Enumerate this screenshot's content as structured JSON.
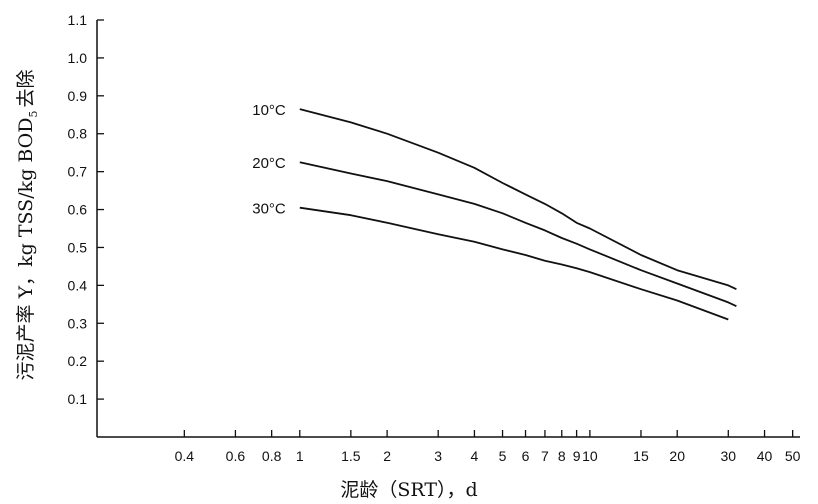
{
  "chart_data": {
    "type": "line",
    "title": "",
    "xlabel": "泥龄（SRT），d",
    "ylabel": "污泥产率 Y，kg TSS/kg BOD",
    "ylabel_subscript": "5",
    "ylabel_suffix": "去除",
    "x_scale": "log",
    "xlim": [
      0.2,
      53
    ],
    "ylim": [
      0,
      1.1
    ],
    "grid": false,
    "x_ticks": [
      0.4,
      0.6,
      0.8,
      1,
      1.5,
      2,
      3,
      4,
      5,
      6,
      7,
      8,
      9,
      10,
      15,
      20,
      30,
      40,
      50
    ],
    "x_tick_labels": [
      "0.4",
      "0.6",
      "0.8",
      "1",
      "1.5",
      "2",
      "3",
      "4",
      "5",
      "6",
      "7",
      "8",
      "9",
      "10",
      "15",
      "20",
      "30",
      "40",
      "50"
    ],
    "y_ticks": [
      0.1,
      0.2,
      0.3,
      0.4,
      0.5,
      0.6,
      0.7,
      0.8,
      0.9,
      1.0,
      1.1
    ],
    "y_tick_labels": [
      "0.1",
      "0.2",
      "0.3",
      "0.4",
      "0.5",
      "0.6",
      "0.7",
      "0.8",
      "0.9",
      "1.0",
      "1.1"
    ],
    "series": [
      {
        "name": "10°C",
        "x": [
          1,
          1.5,
          2,
          3,
          4,
          5,
          6,
          7,
          8,
          9,
          10,
          15,
          20,
          30,
          32
        ],
        "y": [
          0.865,
          0.83,
          0.8,
          0.75,
          0.71,
          0.67,
          0.64,
          0.615,
          0.59,
          0.565,
          0.55,
          0.48,
          0.44,
          0.4,
          0.39
        ]
      },
      {
        "name": "20°C",
        "x": [
          1,
          1.5,
          2,
          3,
          4,
          5,
          6,
          7,
          8,
          9,
          10,
          15,
          20,
          30,
          32
        ],
        "y": [
          0.725,
          0.695,
          0.675,
          0.64,
          0.615,
          0.59,
          0.565,
          0.545,
          0.525,
          0.51,
          0.495,
          0.44,
          0.405,
          0.355,
          0.345
        ]
      },
      {
        "name": "30°C",
        "x": [
          1,
          1.5,
          2,
          3,
          4,
          5,
          6,
          7,
          8,
          9,
          10,
          15,
          20,
          30
        ],
        "y": [
          0.605,
          0.585,
          0.565,
          0.535,
          0.515,
          0.495,
          0.48,
          0.465,
          0.455,
          0.445,
          0.435,
          0.39,
          0.36,
          0.31
        ]
      }
    ],
    "colors": {
      "line": "#111111",
      "axis": "#111111",
      "background": "#ffffff"
    }
  }
}
